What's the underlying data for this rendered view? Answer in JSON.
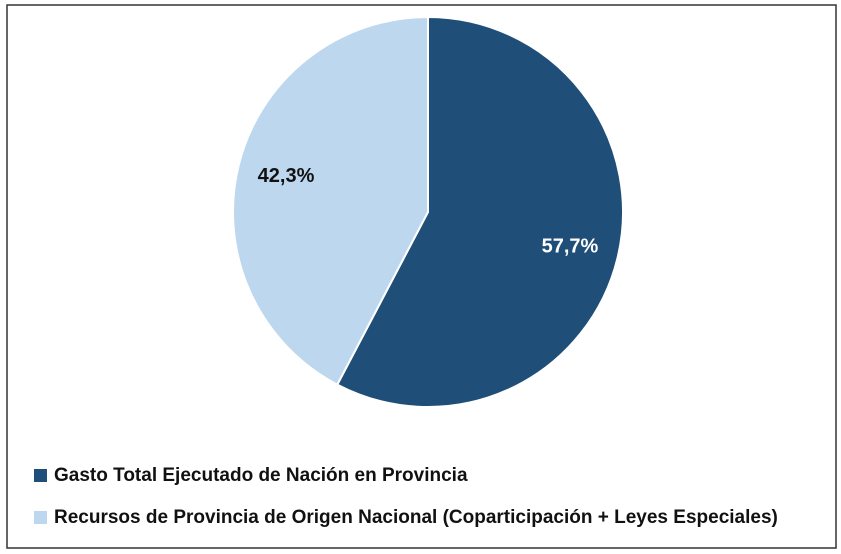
{
  "chart_data": {
    "type": "pie",
    "categories": [
      "Gasto Total Ejecutado de Nación en Provincia",
      "Recursos de Provincia de Origen Nacional (Coparticipación + Leyes Especiales)"
    ],
    "values": [
      57.7,
      42.3
    ],
    "value_labels": [
      "57,7%",
      "42,3%"
    ],
    "colors": [
      "#1f4e79",
      "#bdd7ee"
    ],
    "label_colors": [
      "#ffffff",
      "#111111"
    ]
  }
}
